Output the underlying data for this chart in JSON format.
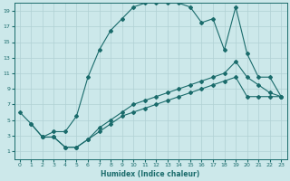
{
  "xlabel": "Humidex (Indice chaleur)",
  "xlim": [
    -0.5,
    23.5
  ],
  "ylim": [
    0,
    20
  ],
  "xticks": [
    0,
    1,
    2,
    3,
    4,
    5,
    6,
    7,
    8,
    9,
    10,
    11,
    12,
    13,
    14,
    15,
    16,
    17,
    18,
    19,
    20,
    21,
    22,
    23
  ],
  "yticks": [
    1,
    3,
    5,
    7,
    9,
    11,
    13,
    15,
    17,
    19
  ],
  "bg_color": "#cce8ea",
  "grid_color": "#b0d0d4",
  "line_color": "#1a6b6b",
  "curve1_x": [
    0,
    1,
    2,
    3,
    4,
    5,
    6,
    7,
    8,
    9,
    10,
    11,
    12,
    13,
    14,
    15,
    16,
    17,
    18,
    19,
    20,
    21,
    22,
    23
  ],
  "curve1_y": [
    6,
    4.5,
    2.8,
    3.5,
    3.5,
    5.5,
    10.5,
    14,
    16.5,
    18,
    19.5,
    20,
    20,
    20,
    20,
    19.5,
    17.5,
    18,
    14,
    19.5,
    13.5,
    10.5,
    10.5,
    8
  ],
  "curve2_x": [
    1,
    2,
    3,
    4,
    5,
    6,
    7,
    8,
    9,
    10,
    11,
    12,
    13,
    14,
    15,
    16,
    17,
    18,
    19,
    20,
    21,
    22,
    23
  ],
  "curve2_y": [
    4.5,
    2.8,
    2.8,
    1.5,
    1.5,
    2.5,
    4,
    5,
    6,
    7,
    7.5,
    8,
    8.5,
    9,
    9.5,
    10,
    10.5,
    11,
    12.5,
    10.5,
    9.5,
    8.5,
    8
  ],
  "curve3_x": [
    2,
    3,
    4,
    5,
    6,
    7,
    8,
    9,
    10,
    11,
    12,
    13,
    14,
    15,
    16,
    17,
    18,
    19,
    20,
    21,
    22,
    23
  ],
  "curve3_y": [
    2.8,
    2.8,
    1.5,
    1.5,
    2.5,
    3.5,
    4.5,
    5.5,
    6,
    6.5,
    7,
    7.5,
    8,
    8.5,
    9,
    9.5,
    10,
    10.5,
    8,
    8,
    8,
    8
  ]
}
